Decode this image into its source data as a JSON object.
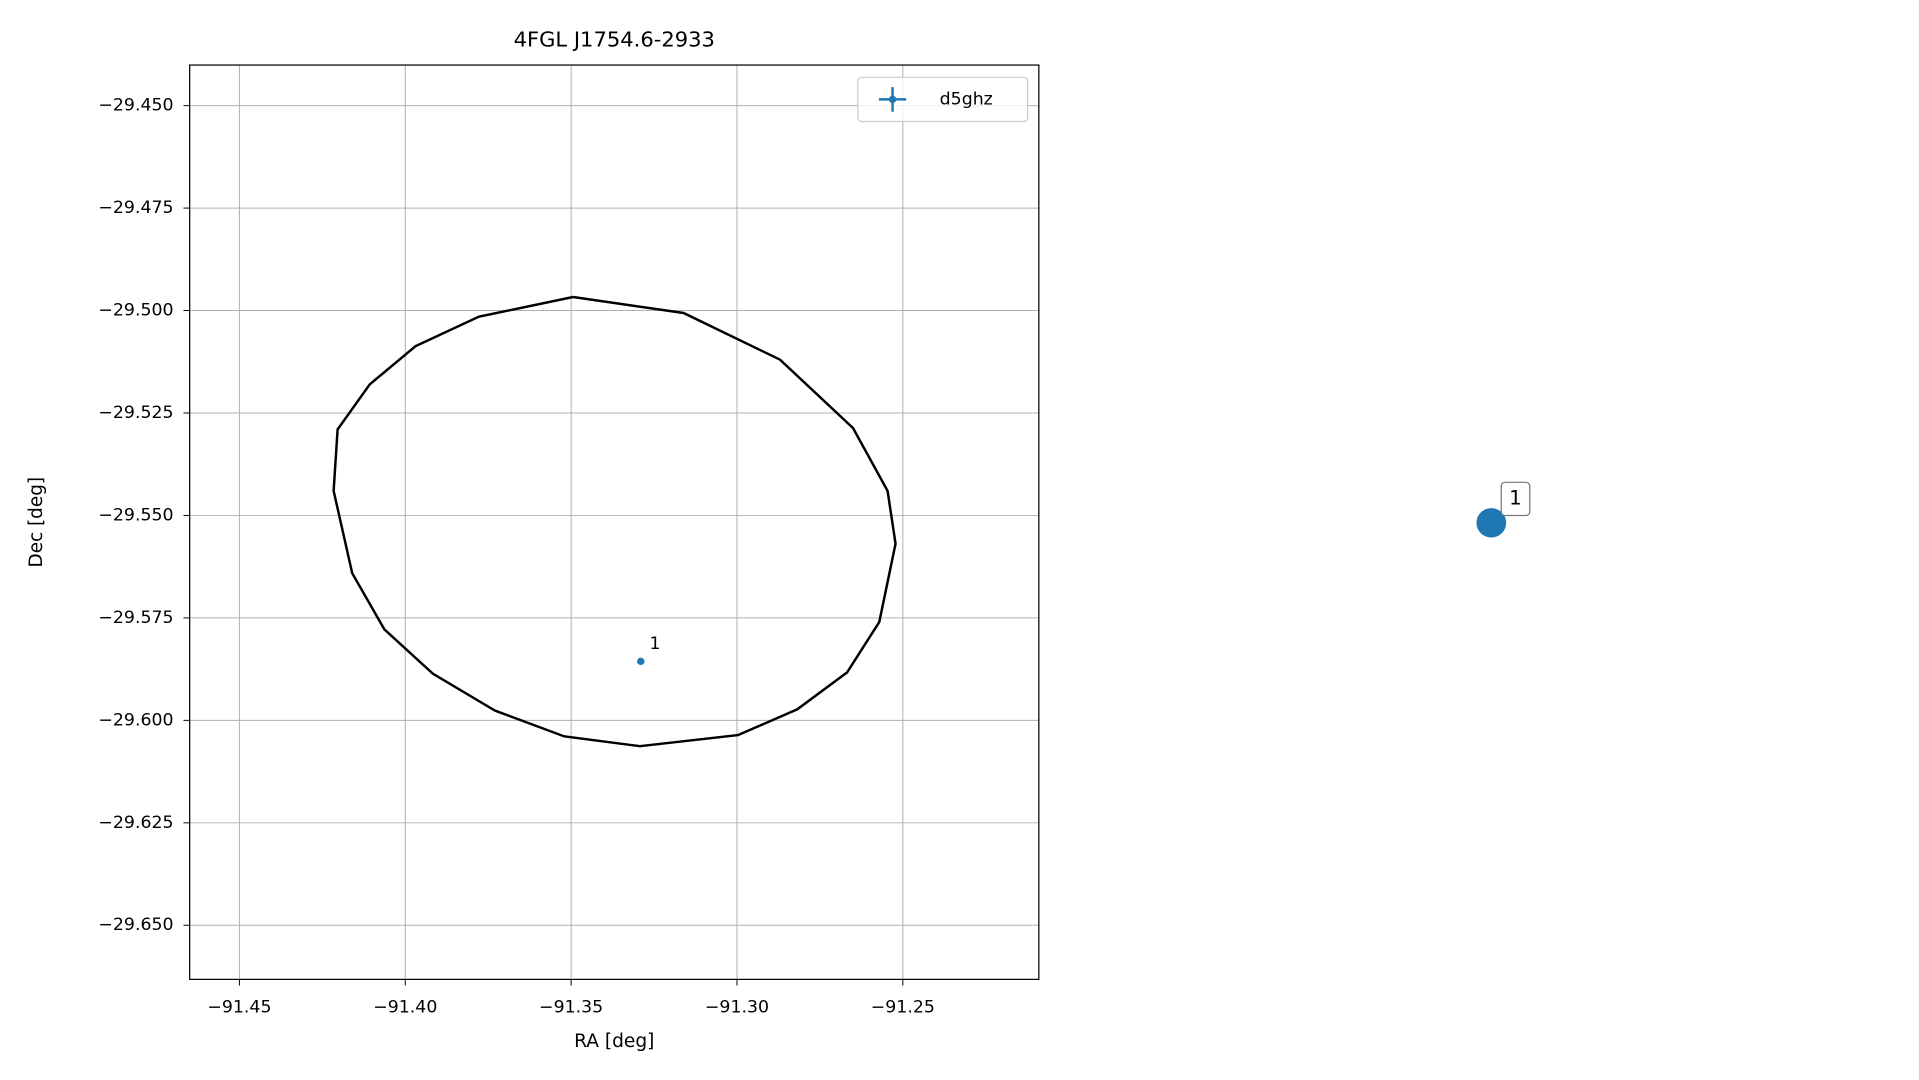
{
  "chart_data": [
    {
      "type": "scatter",
      "title": "4FGL J1754.6-2933",
      "xlabel": "RA [deg]",
      "ylabel": "Dec [deg]",
      "xlim": [
        -91.465,
        -91.209
      ],
      "ylim": [
        -29.6632,
        -29.4401
      ],
      "xticks": [
        {
          "value": -91.45,
          "label": "−91.45"
        },
        {
          "value": -91.4,
          "label": "−91.40"
        },
        {
          "value": -91.35,
          "label": "−91.35"
        },
        {
          "value": -91.3,
          "label": "−91.30"
        },
        {
          "value": -91.25,
          "label": "−91.25"
        }
      ],
      "yticks": [
        {
          "value": -29.45,
          "label": "−29.450"
        },
        {
          "value": -29.475,
          "label": "−29.475"
        },
        {
          "value": -29.5,
          "label": "−29.500"
        },
        {
          "value": -29.525,
          "label": "−29.525"
        },
        {
          "value": -29.55,
          "label": "−29.550"
        },
        {
          "value": -29.575,
          "label": "−29.575"
        },
        {
          "value": -29.6,
          "label": "−29.600"
        },
        {
          "value": -29.625,
          "label": "−29.625"
        },
        {
          "value": -29.65,
          "label": "−29.650"
        }
      ],
      "grid": true,
      "legend": "upper right",
      "series": [
        {
          "name": "d5ghz",
          "color": "#1f77b4",
          "x": [
            -91.329
          ],
          "y": [
            -29.5856
          ],
          "point_labels": [
            "1"
          ]
        }
      ],
      "ellipse": {
        "color": "#000000",
        "x": [
          -91.3494,
          -91.3161,
          -91.287,
          -91.265,
          -91.2546,
          -91.2522,
          -91.2571,
          -91.2668,
          -91.2818,
          -91.2997,
          -91.3293,
          -91.3521,
          -91.373,
          -91.3917,
          -91.4063,
          -91.416,
          -91.4216,
          -91.4204,
          -91.4107,
          -91.3969,
          -91.3778,
          -91.3494
        ],
        "y": [
          -29.4967,
          -29.5006,
          -29.512,
          -29.5287,
          -29.544,
          -29.5569,
          -29.576,
          -29.5883,
          -29.5973,
          -29.6036,
          -29.6063,
          -29.6039,
          -29.5976,
          -29.5886,
          -29.5778,
          -29.5641,
          -29.544,
          -29.529,
          -29.518,
          -29.5087,
          -29.5015,
          -29.4967
        ]
      }
    },
    {
      "type": "marker",
      "label": "1",
      "color": "#1f77b4"
    }
  ]
}
